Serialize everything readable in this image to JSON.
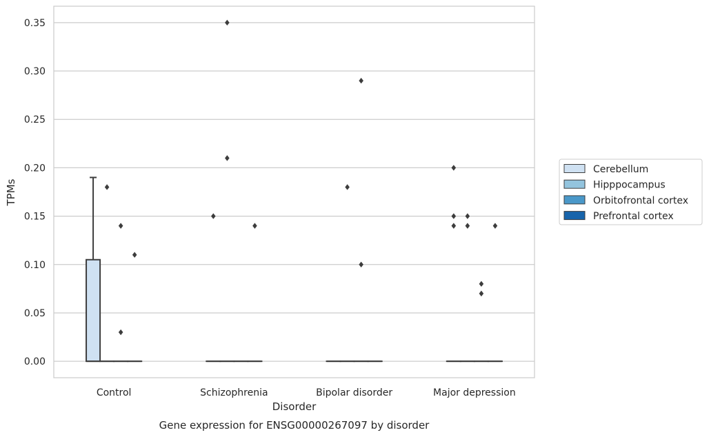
{
  "chart_data": {
    "type": "box",
    "title": "",
    "caption": "Gene expression for ENSG00000267097 by disorder",
    "xlabel": "Disorder",
    "ylabel": "TPMs",
    "categories": [
      "Control",
      "Schizophrenia",
      "Bipolar disorder",
      "Major depression"
    ],
    "ylim": [
      -0.017,
      0.367
    ],
    "yticks": [
      "0.00",
      "0.05",
      "0.10",
      "0.15",
      "0.20",
      "0.25",
      "0.30",
      "0.35"
    ],
    "grid": "horizontal",
    "legend_position": "right",
    "series": [
      {
        "name": "Cerebellum",
        "color": "#cfe1f2",
        "boxes": [
          {
            "q1": 0.0,
            "median": 0.0,
            "q3": 0.105,
            "whisker_low": 0.0,
            "whisker_high": 0.19,
            "outliers": []
          },
          {
            "q1": 0.0,
            "median": 0.0,
            "q3": 0.0,
            "whisker_low": 0.0,
            "whisker_high": 0.0,
            "outliers": [
              0.15
            ]
          },
          {
            "q1": 0.0,
            "median": 0.0,
            "q3": 0.0,
            "whisker_low": 0.0,
            "whisker_high": 0.0,
            "outliers": []
          },
          {
            "q1": 0.0,
            "median": 0.0,
            "q3": 0.0,
            "whisker_low": 0.0,
            "whisker_high": 0.0,
            "outliers": [
              0.2,
              0.15,
              0.14
            ]
          }
        ]
      },
      {
        "name": "Hipppocampus",
        "color": "#93c4de",
        "boxes": [
          {
            "q1": 0.0,
            "median": 0.0,
            "q3": 0.0,
            "whisker_low": 0.0,
            "whisker_high": 0.0,
            "outliers": [
              0.18
            ]
          },
          {
            "q1": 0.0,
            "median": 0.0,
            "q3": 0.0,
            "whisker_low": 0.0,
            "whisker_high": 0.0,
            "outliers": [
              0.35,
              0.21
            ]
          },
          {
            "q1": 0.0,
            "median": 0.0,
            "q3": 0.0,
            "whisker_low": 0.0,
            "whisker_high": 0.0,
            "outliers": [
              0.18
            ]
          },
          {
            "q1": 0.0,
            "median": 0.0,
            "q3": 0.0,
            "whisker_low": 0.0,
            "whisker_high": 0.0,
            "outliers": [
              0.15,
              0.14
            ]
          }
        ]
      },
      {
        "name": "Orbitofrontal cortex",
        "color": "#4a98c9",
        "boxes": [
          {
            "q1": 0.0,
            "median": 0.0,
            "q3": 0.0,
            "whisker_low": 0.0,
            "whisker_high": 0.0,
            "outliers": [
              0.14,
              0.03
            ]
          },
          {
            "q1": 0.0,
            "median": 0.0,
            "q3": 0.0,
            "whisker_low": 0.0,
            "whisker_high": 0.0,
            "outliers": []
          },
          {
            "q1": 0.0,
            "median": 0.0,
            "q3": 0.0,
            "whisker_low": 0.0,
            "whisker_high": 0.0,
            "outliers": [
              0.29,
              0.1
            ]
          },
          {
            "q1": 0.0,
            "median": 0.0,
            "q3": 0.0,
            "whisker_low": 0.0,
            "whisker_high": 0.0,
            "outliers": [
              0.08,
              0.07
            ]
          }
        ]
      },
      {
        "name": "Prefrontal cortex",
        "color": "#1764ab",
        "boxes": [
          {
            "q1": 0.0,
            "median": 0.0,
            "q3": 0.0,
            "whisker_low": 0.0,
            "whisker_high": 0.0,
            "outliers": [
              0.11
            ]
          },
          {
            "q1": 0.0,
            "median": 0.0,
            "q3": 0.0,
            "whisker_low": 0.0,
            "whisker_high": 0.0,
            "outliers": [
              0.14
            ]
          },
          {
            "q1": 0.0,
            "median": 0.0,
            "q3": 0.0,
            "whisker_low": 0.0,
            "whisker_high": 0.0,
            "outliers": []
          },
          {
            "q1": 0.0,
            "median": 0.0,
            "q3": 0.0,
            "whisker_low": 0.0,
            "whisker_high": 0.0,
            "outliers": [
              0.14
            ]
          }
        ]
      }
    ]
  }
}
